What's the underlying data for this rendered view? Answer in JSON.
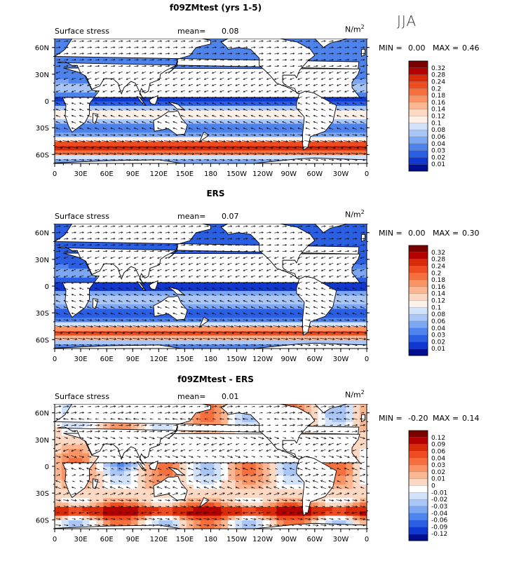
{
  "season": "JJA",
  "colors": {
    "land": "#ffffff",
    "coast": "#000000",
    "vector": "#111111"
  },
  "panels": [
    {
      "id": "model",
      "title": "f09ZMtest (yrs 1-5)",
      "left_label": "Surface stress",
      "mean_label": "mean=",
      "mean_value": "0.08",
      "units": "N/m",
      "units_sup": "2",
      "min_label": "MIN =",
      "min_value": "0.00",
      "max_label": "MAX =",
      "max_value": "0.46",
      "colorbar": {
        "labels": [
          "0.32",
          "0.28",
          "0.24",
          "0.2",
          "0.18",
          "0.16",
          "0.14",
          "0.12",
          "0.1",
          "0.08",
          "0.06",
          "0.04",
          "0.03",
          "0.02",
          "0.01"
        ],
        "colors": [
          "#7a0000",
          "#b30000",
          "#d72b0a",
          "#ee4d22",
          "#f6703d",
          "#fa9465",
          "#fcb692",
          "#fdd8c2",
          "#fff1e8",
          "#d3e2fb",
          "#a9c6f7",
          "#7da7f2",
          "#4f83ec",
          "#2a5ee3",
          "#1037cf",
          "#000f8f"
        ]
      }
    },
    {
      "id": "obs",
      "title": "ERS",
      "left_label": "Surface stress",
      "mean_label": "mean=",
      "mean_value": "0.07",
      "units": "N/m",
      "units_sup": "2",
      "min_label": "MIN =",
      "min_value": "0.00",
      "max_label": "MAX =",
      "max_value": "0.30",
      "colorbar": {
        "labels": [
          "0.32",
          "0.28",
          "0.24",
          "0.2",
          "0.18",
          "0.16",
          "0.14",
          "0.12",
          "0.1",
          "0.08",
          "0.06",
          "0.04",
          "0.03",
          "0.02",
          "0.01"
        ],
        "colors": [
          "#7a0000",
          "#b30000",
          "#d72b0a",
          "#ee4d22",
          "#f6703d",
          "#fa9465",
          "#fcb692",
          "#fdd8c2",
          "#fff1e8",
          "#d3e2fb",
          "#a9c6f7",
          "#7da7f2",
          "#4f83ec",
          "#2a5ee3",
          "#1037cf",
          "#000f8f"
        ]
      }
    },
    {
      "id": "diff",
      "title": "f09ZMtest - ERS",
      "left_label": "Surface stress",
      "mean_label": "mean=",
      "mean_value": "0.01",
      "units": "N/m",
      "units_sup": "2",
      "min_label": "MIN =",
      "min_value": "-0.20",
      "max_label": "MAX =",
      "max_value": "0.14",
      "colorbar": {
        "labels": [
          "0.12",
          "0.09",
          "0.06",
          "0.04",
          "0.03",
          "0.02",
          "0.01",
          "0",
          "-0.01",
          "-0.02",
          "-0.03",
          "-0.04",
          "-0.06",
          "-0.09",
          "-0.12"
        ],
        "colors": [
          "#7a0000",
          "#b30000",
          "#d72b0a",
          "#ee4d22",
          "#f6703d",
          "#fa9465",
          "#fcb692",
          "#fdd8c2",
          "#ffffff",
          "#d3e2fb",
          "#a9c6f7",
          "#7da7f2",
          "#4f83ec",
          "#2a5ee3",
          "#1037cf",
          "#000f8f"
        ]
      }
    }
  ],
  "axes": {
    "lat_labels": [
      "60N",
      "30N",
      "0",
      "30S",
      "60S"
    ],
    "lat_values": [
      60,
      30,
      0,
      -30,
      -60
    ],
    "lon_labels": [
      "0",
      "30E",
      "60E",
      "90E",
      "120E",
      "150E",
      "180",
      "150W",
      "120W",
      "90W",
      "60W",
      "30W",
      "0"
    ],
    "lon_values": [
      0,
      30,
      60,
      90,
      120,
      150,
      180,
      210,
      240,
      270,
      300,
      330,
      360
    ],
    "lat_range": [
      -70,
      70
    ],
    "lon_range": [
      0,
      360
    ]
  }
}
